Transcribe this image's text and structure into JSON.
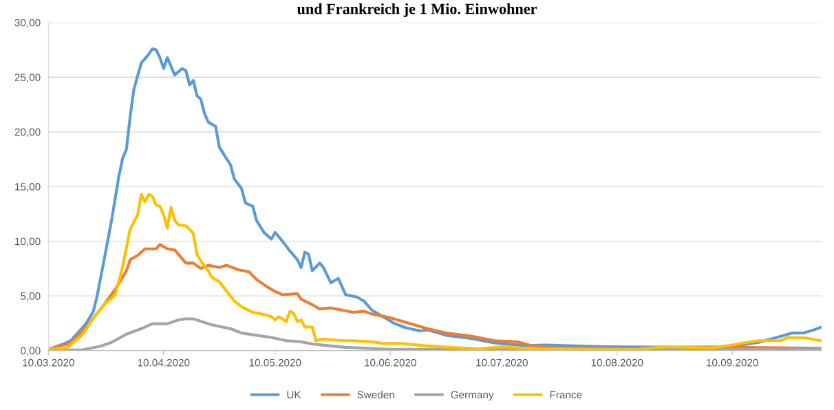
{
  "chart_data": {
    "type": "line",
    "title": "und Frankreich je 1 Mio. Einwohner",
    "xlim": [
      "2020-03-10",
      "2020-10-04"
    ],
    "xticks": [
      {
        "value": "2020-03-10",
        "label": "10.03.2020"
      },
      {
        "value": "2020-04-10",
        "label": "10.04.2020"
      },
      {
        "value": "2020-05-10",
        "label": "10.05.2020"
      },
      {
        "value": "2020-06-10",
        "label": "10.06.2020"
      },
      {
        "value": "2020-07-10",
        "label": "10.07.2020"
      },
      {
        "value": "2020-08-10",
        "label": "10.08.2020"
      },
      {
        "value": "2020-09-10",
        "label": "10.09.2020"
      }
    ],
    "ylim": [
      0,
      30
    ],
    "yticks": [
      {
        "value": 0,
        "label": "0,00"
      },
      {
        "value": 5,
        "label": "5,00"
      },
      {
        "value": 10,
        "label": "10,00"
      },
      {
        "value": 15,
        "label": "15,00"
      },
      {
        "value": 20,
        "label": "20,00"
      },
      {
        "value": 25,
        "label": "25,00"
      },
      {
        "value": 30,
        "label": "30,00"
      }
    ],
    "grid": "y",
    "legend": "bottom",
    "marker": "none",
    "line_style": "solid",
    "series": [
      {
        "name": "UK",
        "color": "#5b9bd5",
        "x": [
          "2020-03-10",
          "2020-03-14",
          "2020-03-16",
          "2020-03-20",
          "2020-03-22",
          "2020-03-23",
          "2020-03-25",
          "2020-03-27",
          "2020-03-29",
          "2020-03-30",
          "2020-03-31",
          "2020-04-01",
          "2020-04-02",
          "2020-04-04",
          "2020-04-06",
          "2020-04-07",
          "2020-04-08",
          "2020-04-09",
          "2020-04-10",
          "2020-04-11",
          "2020-04-13",
          "2020-04-15",
          "2020-04-16",
          "2020-04-17",
          "2020-04-18",
          "2020-04-19",
          "2020-04-20",
          "2020-04-21",
          "2020-04-22",
          "2020-04-24",
          "2020-04-25",
          "2020-04-27",
          "2020-04-28",
          "2020-04-29",
          "2020-05-01",
          "2020-05-02",
          "2020-05-04",
          "2020-05-05",
          "2020-05-07",
          "2020-05-09",
          "2020-05-10",
          "2020-05-12",
          "2020-05-14",
          "2020-05-16",
          "2020-05-17",
          "2020-05-18",
          "2020-05-19",
          "2020-05-20",
          "2020-05-22",
          "2020-05-23",
          "2020-05-25",
          "2020-05-27",
          "2020-05-29",
          "2020-06-01",
          "2020-06-03",
          "2020-06-05",
          "2020-06-08",
          "2020-06-11",
          "2020-06-14",
          "2020-06-18",
          "2020-06-20",
          "2020-06-25",
          "2020-07-02",
          "2020-07-08",
          "2020-07-16",
          "2020-07-22",
          "2020-08-07",
          "2020-08-27",
          "2020-09-08",
          "2020-09-13",
          "2020-09-17",
          "2020-09-22",
          "2020-09-26",
          "2020-09-29",
          "2020-10-02",
          "2020-10-04"
        ],
        "values": [
          0.1,
          0.6,
          0.9,
          2.4,
          3.5,
          4.8,
          8.3,
          11.9,
          16.0,
          17.6,
          18.4,
          21.4,
          23.9,
          26.3,
          27.1,
          27.6,
          27.5,
          26.8,
          25.8,
          26.8,
          25.2,
          25.8,
          25.6,
          24.3,
          24.7,
          23.3,
          23.0,
          21.7,
          20.9,
          20.5,
          18.6,
          17.5,
          17.0,
          15.7,
          14.8,
          13.5,
          13.2,
          11.9,
          10.8,
          10.2,
          10.8,
          10.0,
          9.1,
          8.3,
          7.6,
          9.0,
          8.8,
          7.3,
          8.0,
          7.6,
          6.2,
          6.6,
          5.1,
          4.9,
          4.5,
          3.7,
          3.1,
          2.5,
          2.1,
          1.8,
          1.9,
          1.4,
          1.1,
          0.7,
          0.45,
          0.5,
          0.35,
          0.3,
          0.35,
          0.55,
          0.75,
          1.2,
          1.6,
          1.6,
          1.9,
          2.15
        ]
      },
      {
        "name": "Sweden",
        "color": "#ed7d31",
        "x": [
          "2020-03-10",
          "2020-03-16",
          "2020-03-21",
          "2020-03-25",
          "2020-03-28",
          "2020-03-31",
          "2020-04-01",
          "2020-04-03",
          "2020-04-05",
          "2020-04-08",
          "2020-04-09",
          "2020-04-11",
          "2020-04-13",
          "2020-04-16",
          "2020-04-18",
          "2020-04-20",
          "2020-04-22",
          "2020-04-25",
          "2020-04-27",
          "2020-04-30",
          "2020-05-03",
          "2020-05-05",
          "2020-05-08",
          "2020-05-10",
          "2020-05-12",
          "2020-05-16",
          "2020-05-17",
          "2020-05-20",
          "2020-05-22",
          "2020-05-25",
          "2020-05-28",
          "2020-05-31",
          "2020-06-03",
          "2020-06-05",
          "2020-06-10",
          "2020-06-17",
          "2020-06-20",
          "2020-06-25",
          "2020-07-02",
          "2020-07-08",
          "2020-07-14",
          "2020-07-18",
          "2020-07-23",
          "2020-08-17",
          "2020-09-11",
          "2020-09-22",
          "2020-10-04"
        ],
        "values": [
          0.1,
          0.7,
          2.5,
          4.2,
          5.6,
          7.3,
          8.3,
          8.7,
          9.3,
          9.3,
          9.7,
          9.3,
          9.2,
          8.0,
          8.0,
          7.5,
          7.8,
          7.6,
          7.8,
          7.4,
          7.2,
          6.5,
          5.8,
          5.4,
          5.1,
          5.2,
          4.7,
          4.2,
          3.8,
          3.9,
          3.7,
          3.5,
          3.6,
          3.35,
          3.0,
          2.3,
          2.0,
          1.6,
          1.3,
          0.9,
          0.8,
          0.45,
          0.25,
          0.2,
          0.3,
          0.25,
          0.2
        ]
      },
      {
        "name": "Germany",
        "color": "#a5a5a5",
        "x": [
          "2020-03-10",
          "2020-03-19",
          "2020-03-24",
          "2020-03-27",
          "2020-03-31",
          "2020-04-04",
          "2020-04-07",
          "2020-04-11",
          "2020-04-14",
          "2020-04-16",
          "2020-04-18",
          "2020-04-23",
          "2020-04-28",
          "2020-05-01",
          "2020-05-05",
          "2020-05-09",
          "2020-05-13",
          "2020-05-17",
          "2020-05-20",
          "2020-05-24",
          "2020-05-29",
          "2020-06-09",
          "2020-08-07",
          "2020-10-04"
        ],
        "values": [
          0.05,
          0.05,
          0.4,
          0.75,
          1.5,
          2.0,
          2.45,
          2.45,
          2.8,
          2.9,
          2.9,
          2.35,
          2.0,
          1.6,
          1.4,
          1.2,
          0.9,
          0.8,
          0.6,
          0.45,
          0.3,
          0.12,
          0.1,
          0.1
        ]
      },
      {
        "name": "France",
        "color": "#ffc000",
        "x": [
          "2020-03-10",
          "2020-03-15",
          "2020-03-19",
          "2020-03-22",
          "2020-03-25",
          "2020-03-28",
          "2020-03-30",
          "2020-04-01",
          "2020-04-03",
          "2020-04-04",
          "2020-04-05",
          "2020-04-06",
          "2020-04-07",
          "2020-04-08",
          "2020-04-09",
          "2020-04-10",
          "2020-04-11",
          "2020-04-12",
          "2020-04-13",
          "2020-04-14",
          "2020-04-16",
          "2020-04-17",
          "2020-04-18",
          "2020-04-19",
          "2020-04-20",
          "2020-04-22",
          "2020-04-23",
          "2020-04-25",
          "2020-04-27",
          "2020-04-29",
          "2020-05-01",
          "2020-05-04",
          "2020-05-07",
          "2020-05-09",
          "2020-05-10",
          "2020-05-11",
          "2020-05-13",
          "2020-05-14",
          "2020-05-15",
          "2020-05-16",
          "2020-05-17",
          "2020-05-18",
          "2020-05-20",
          "2020-05-21",
          "2020-05-23",
          "2020-05-28",
          "2020-05-31",
          "2020-06-05",
          "2020-06-08",
          "2020-06-13",
          "2020-06-19",
          "2020-06-28",
          "2020-07-04",
          "2020-07-10",
          "2020-07-18",
          "2020-08-15",
          "2020-08-23",
          "2020-09-04",
          "2020-09-09",
          "2020-09-14",
          "2020-09-17",
          "2020-09-23",
          "2020-09-25",
          "2020-09-30",
          "2020-10-02",
          "2020-10-04"
        ],
        "values": [
          0.1,
          0.25,
          1.4,
          2.9,
          4.2,
          5.1,
          7.7,
          11.1,
          12.4,
          14.3,
          13.6,
          14.3,
          14.1,
          13.3,
          13.2,
          12.4,
          11.2,
          13.1,
          11.9,
          11.5,
          11.4,
          11.1,
          10.7,
          8.8,
          8.2,
          7.3,
          6.7,
          6.3,
          5.4,
          4.55,
          4.0,
          3.5,
          3.3,
          3.1,
          2.8,
          3.1,
          2.65,
          3.6,
          3.4,
          2.65,
          2.8,
          2.15,
          2.15,
          0.9,
          1.05,
          0.9,
          0.9,
          0.8,
          0.65,
          0.65,
          0.45,
          0.25,
          0.15,
          0.35,
          0.15,
          0.1,
          0.35,
          0.25,
          0.45,
          0.75,
          0.9,
          0.9,
          1.2,
          1.15,
          1.0,
          0.9
        ]
      }
    ]
  }
}
